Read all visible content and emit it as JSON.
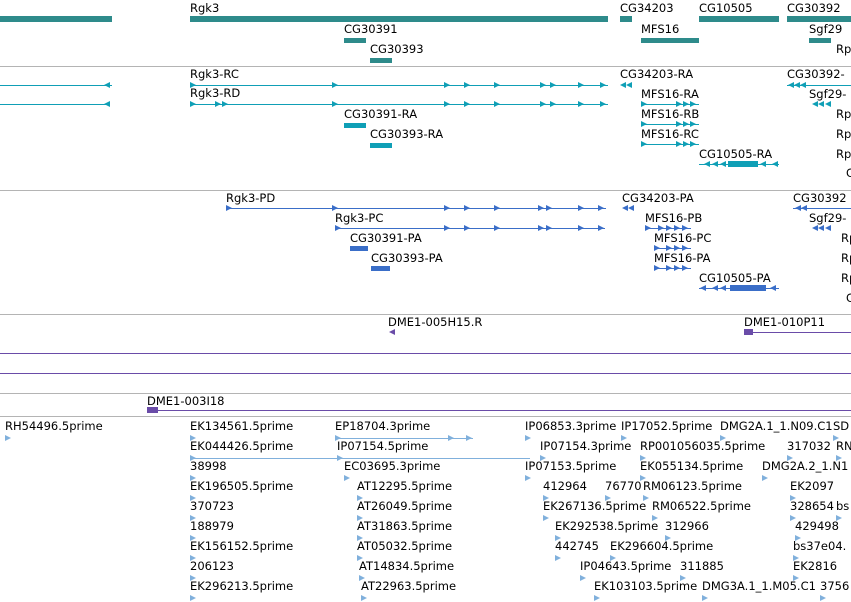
{
  "colors": {
    "gene": "#2e8b8b",
    "transcript_teal": "#0f9fb6",
    "transcript_blue": "#3a6ec8",
    "clone": "#6a4ca8",
    "est": "#80b0dc",
    "separator": "#b4b4b4"
  },
  "tracks": {
    "genes": {
      "features": [
        {
          "label": ""
        },
        {
          "label": "Rgk3"
        },
        {
          "label": "CG30391"
        },
        {
          "label": "CG30393"
        },
        {
          "label": "CG34203"
        },
        {
          "label": "CG10505"
        },
        {
          "label": "CG30392"
        },
        {
          "label": "MFS16"
        },
        {
          "label": "Sgf29"
        },
        {
          "label": "Rp"
        }
      ]
    },
    "transcripts_a": {
      "features": [
        {
          "label": ""
        },
        {
          "label": ""
        },
        {
          "label": "Rgk3-RC"
        },
        {
          "label": "Rgk3-RD"
        },
        {
          "label": "CG30391-RA"
        },
        {
          "label": "CG30393-RA"
        },
        {
          "label": "CG34203-RA"
        },
        {
          "label": "MFS16-RA"
        },
        {
          "label": "MFS16-RB"
        },
        {
          "label": "MFS16-RC"
        },
        {
          "label": "CG10505-RA"
        },
        {
          "label": "CG30392-"
        },
        {
          "label": "Sgf29-"
        },
        {
          "label": "Rp"
        },
        {
          "label": "Rp"
        },
        {
          "label": "Rp"
        },
        {
          "label": "C"
        }
      ]
    },
    "transcripts_b": {
      "features": [
        {
          "label": "Rgk3-PD"
        },
        {
          "label": "Rgk3-PC"
        },
        {
          "label": "CG30391-PA"
        },
        {
          "label": "CG30393-PA"
        },
        {
          "label": "CG34203-PA"
        },
        {
          "label": "MFS16-PB"
        },
        {
          "label": "MFS16-PC"
        },
        {
          "label": "MFS16-PA"
        },
        {
          "label": "CG10505-PA"
        },
        {
          "label": "CG30392"
        },
        {
          "label": "Sgf29-"
        },
        {
          "label": "Rp"
        },
        {
          "label": "Rp"
        },
        {
          "label": "Rp"
        },
        {
          "label": "C"
        }
      ]
    },
    "clones_a": {
      "features": [
        {
          "label": "DME1-005H15.R"
        },
        {
          "label": "DME1-010P11"
        }
      ]
    },
    "clones_b": {
      "features": [
        {
          "label": "DME1-003I18"
        }
      ]
    },
    "ests": {
      "features": [
        {
          "label": "RH54496.5prime"
        },
        {
          "label": "EK134561.5prime"
        },
        {
          "label": "EK044426.5prime"
        },
        {
          "label": "38998"
        },
        {
          "label": "EK196505.5prime"
        },
        {
          "label": "370723"
        },
        {
          "label": "188979"
        },
        {
          "label": "EK156152.5prime"
        },
        {
          "label": "206123"
        },
        {
          "label": "EK296213.5prime"
        },
        {
          "label": "EP18704.3prime"
        },
        {
          "label": "IP07154.5prime"
        },
        {
          "label": "EC03695.3prime"
        },
        {
          "label": "AT12295.5prime"
        },
        {
          "label": "AT26049.5prime"
        },
        {
          "label": "AT31863.5prime"
        },
        {
          "label": "AT05032.5prime"
        },
        {
          "label": "AT14834.5prime"
        },
        {
          "label": "AT22963.5prime"
        },
        {
          "label": "IP06853.3prime"
        },
        {
          "label": "IP17052.5prime"
        },
        {
          "label": "IP07154.3prime"
        },
        {
          "label": "IP07153.5prime"
        },
        {
          "label": "412964"
        },
        {
          "label": "76770"
        },
        {
          "label": "EK267136.5prime"
        },
        {
          "label": "EK292538.5prime"
        },
        {
          "label": "442745"
        },
        {
          "label": "EK296604.5prime"
        },
        {
          "label": "IP04643.5prime"
        },
        {
          "label": "EK103103.5prime"
        },
        {
          "label": "DMG2A.1_1.N09.C1"
        },
        {
          "label": "SD"
        },
        {
          "label": "RP001056035.5prime"
        },
        {
          "label": "317032"
        },
        {
          "label": "RN"
        },
        {
          "label": "EK055134.5prime"
        },
        {
          "label": "DMG2A.2_1.N1"
        },
        {
          "label": "RM06123.5prime"
        },
        {
          "label": "EK2097"
        },
        {
          "label": "RM06522.5prime"
        },
        {
          "label": "328654"
        },
        {
          "label": "bs"
        },
        {
          "label": "312966"
        },
        {
          "label": "429498"
        },
        {
          "label": "311885"
        },
        {
          "label": "bs37e04."
        },
        {
          "label": "EK2816"
        },
        {
          "label": "DMG3A.1_1.M05.C1"
        },
        {
          "label": "3756"
        }
      ]
    }
  }
}
